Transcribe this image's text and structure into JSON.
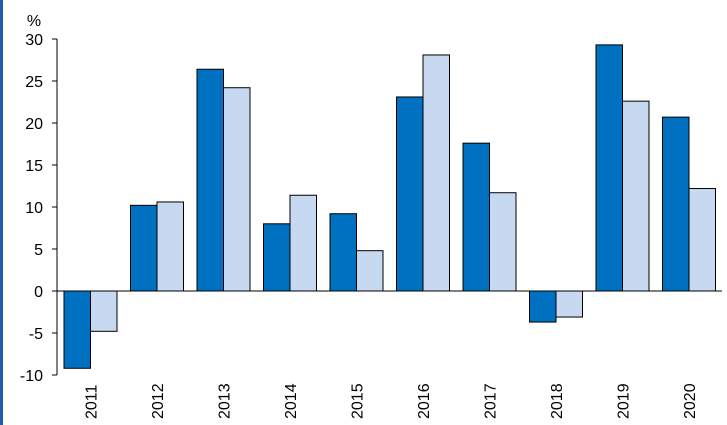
{
  "chart_data": {
    "type": "bar",
    "unit_label": "%",
    "categories": [
      "2011",
      "2012",
      "2013",
      "2014",
      "2015",
      "2016",
      "2017",
      "2018",
      "2019",
      "2020"
    ],
    "series": [
      {
        "color": "#0070c0",
        "values": [
          -9.2,
          10.2,
          26.4,
          8.0,
          9.2,
          23.1,
          17.6,
          -3.7,
          29.3,
          20.7
        ]
      },
      {
        "color": "#c6d9f1",
        "values": [
          -4.8,
          10.6,
          24.2,
          11.4,
          4.8,
          28.1,
          11.7,
          -3.1,
          22.6,
          12.2
        ]
      }
    ],
    "ylim": [
      -10,
      30
    ],
    "yticks": [
      -10,
      -5,
      0,
      5,
      10,
      15,
      20,
      25,
      30
    ],
    "grid": false
  },
  "colors": {
    "frame": "#1f5fa8",
    "axis": "#000000"
  }
}
